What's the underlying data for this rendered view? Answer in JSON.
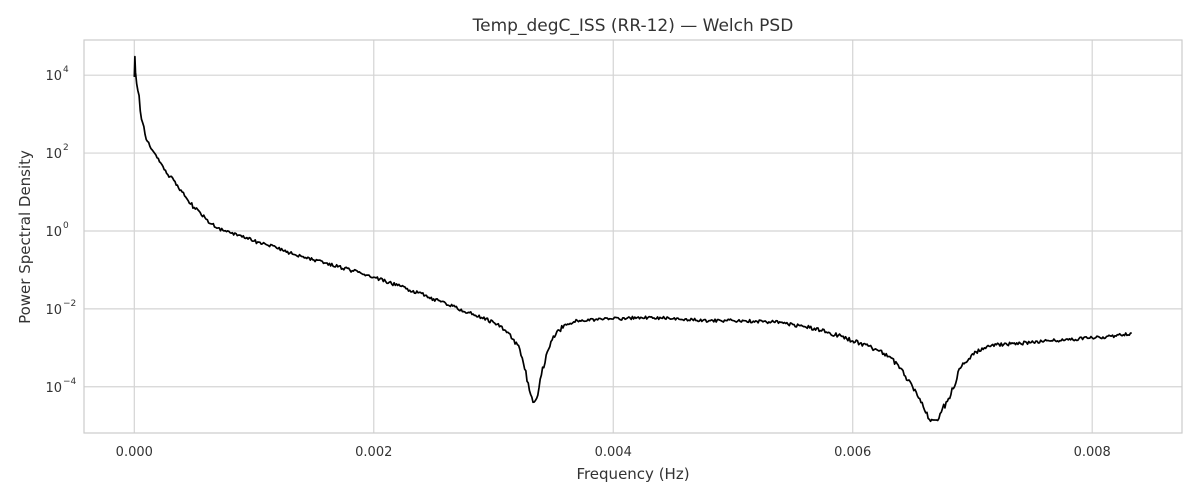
{
  "chart_data": {
    "type": "line",
    "title": "Temp_degC_ISS (RR-12) — Welch PSD",
    "xlabel": "Frequency (Hz)",
    "ylabel": "Power Spectral Density",
    "xlim": [
      -0.00042,
      0.00875
    ],
    "ylim": [
      6.5e-06,
      80000
    ],
    "yscale": "log",
    "grid": true,
    "legend": "none",
    "x_ticks": [
      {
        "value": 0.0,
        "label": "0.000"
      },
      {
        "value": 0.002,
        "label": "0.002"
      },
      {
        "value": 0.004,
        "label": "0.004"
      },
      {
        "value": 0.006,
        "label": "0.006"
      },
      {
        "value": 0.008,
        "label": "0.008"
      }
    ],
    "y_ticks": [
      {
        "value": 0.0001,
        "base": "10",
        "exp": "−4"
      },
      {
        "value": 0.01,
        "base": "10",
        "exp": "−2"
      },
      {
        "value": 1,
        "base": "10",
        "exp": "0"
      },
      {
        "value": 100,
        "base": "10",
        "exp": "2"
      },
      {
        "value": 10000,
        "base": "10",
        "exp": "4"
      }
    ],
    "colors": {
      "line": "#000000",
      "grid": "#d4d4d4",
      "frame": "#cccccc",
      "text": "#333333"
    },
    "series": [
      {
        "x": [
          0.0,
          5e-06,
          1e-05,
          2e-05,
          3e-05,
          4e-05,
          5e-05,
          7e-05,
          9e-05,
          0.00011,
          0.00013,
          0.00015,
          0.00018,
          0.00021,
          0.00024,
          0.00027,
          0.0003,
          0.00035,
          0.0004,
          0.00045,
          0.0005,
          0.00055,
          0.0006,
          0.00065,
          0.0007,
          0.00075,
          0.0008,
          0.0009,
          0.001,
          0.0011,
          0.0012,
          0.0013,
          0.0014,
          0.0015,
          0.0016,
          0.0017,
          0.0018,
          0.0019,
          0.002,
          0.0021,
          0.0022,
          0.0023,
          0.0024,
          0.0025,
          0.0026,
          0.0027,
          0.0028,
          0.0029,
          0.003,
          0.0031,
          0.0032,
          0.00325,
          0.0033,
          0.00333,
          0.00336,
          0.0034,
          0.00345,
          0.0035,
          0.0036,
          0.0037,
          0.0038,
          0.0039,
          0.004,
          0.0042,
          0.0044,
          0.0046,
          0.0048,
          0.005,
          0.0052,
          0.0054,
          0.0056,
          0.0058,
          0.006,
          0.0062,
          0.0063,
          0.0064,
          0.0065,
          0.0066,
          0.00665,
          0.0067,
          0.0068,
          0.0069,
          0.007,
          0.0071,
          0.0072,
          0.0074,
          0.0076,
          0.0078,
          0.008,
          0.0082,
          0.00833
        ],
        "y": [
          9000,
          30000,
          12000,
          6000,
          4000,
          3000,
          1200,
          600,
          300,
          200,
          150,
          120,
          90,
          60,
          45,
          30,
          25,
          15,
          10,
          6,
          4,
          3,
          2,
          1.5,
          1.2,
          1,
          0.9,
          0.7,
          0.55,
          0.45,
          0.35,
          0.27,
          0.22,
          0.18,
          0.15,
          0.12,
          0.1,
          0.08,
          0.065,
          0.05,
          0.04,
          0.03,
          0.025,
          0.018,
          0.014,
          0.01,
          0.008,
          0.006,
          0.0045,
          0.0028,
          0.0012,
          0.0004,
          8e-05,
          4e-05,
          5e-05,
          0.0002,
          0.0008,
          0.002,
          0.004,
          0.005,
          0.005,
          0.0055,
          0.0055,
          0.006,
          0.0058,
          0.0055,
          0.005,
          0.005,
          0.0048,
          0.0045,
          0.0035,
          0.0025,
          0.0015,
          0.0009,
          0.0006,
          0.0003,
          0.0001,
          2.5e-05,
          1.3e-05,
          1.4e-05,
          5e-05,
          0.0003,
          0.0007,
          0.001,
          0.0012,
          0.0013,
          0.0015,
          0.0016,
          0.0018,
          0.002,
          0.0024
        ]
      }
    ]
  }
}
